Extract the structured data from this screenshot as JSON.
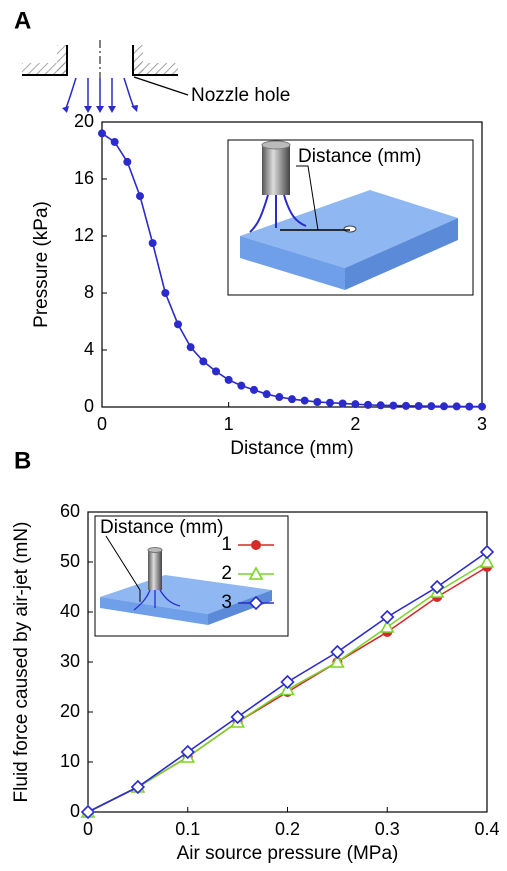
{
  "chart_data": [
    {
      "type": "line",
      "panel_label": "A",
      "annotation": "Nozzle hole",
      "inset_label": "Distance (mm)",
      "xlabel": "Distance (mm)",
      "ylabel": "Pressure (kPa)",
      "x": [
        0,
        0.1,
        0.2,
        0.3,
        0.4,
        0.5,
        0.6,
        0.7,
        0.8,
        0.9,
        1.0,
        1.1,
        1.2,
        1.3,
        1.4,
        1.5,
        1.6,
        1.7,
        1.8,
        1.9,
        2.0,
        2.1,
        2.2,
        2.3,
        2.4,
        2.5,
        2.6,
        2.7,
        2.8,
        2.9,
        3.0
      ],
      "series": [
        {
          "color": "#2b2bcc",
          "marker": "circle",
          "values": [
            19.2,
            18.6,
            17.2,
            14.8,
            11.5,
            8.0,
            5.8,
            4.2,
            3.2,
            2.5,
            1.9,
            1.5,
            1.2,
            0.9,
            0.7,
            0.55,
            0.45,
            0.35,
            0.3,
            0.25,
            0.2,
            0.15,
            0.12,
            0.1,
            0.08,
            0.07,
            0.06,
            0.05,
            0.04,
            0.03,
            0.03
          ]
        }
      ],
      "xlim": [
        0,
        3
      ],
      "xticks": [
        0,
        1,
        2,
        3
      ],
      "ylim": [
        0,
        20
      ],
      "yticks": [
        0,
        4,
        8,
        12,
        16,
        20
      ]
    },
    {
      "type": "line",
      "panel_label": "B",
      "inset_label": "Distance (mm)",
      "xlabel": "Air source pressure (MPa)",
      "ylabel": "Fluid force caused by air-jet (mN)",
      "x": [
        0,
        0.05,
        0.1,
        0.15,
        0.2,
        0.25,
        0.3,
        0.35,
        0.4
      ],
      "series": [
        {
          "name": "1",
          "color": "#d42a2a",
          "marker": "circle",
          "values": [
            0,
            5,
            11,
            18,
            24,
            30,
            36,
            43,
            49
          ]
        },
        {
          "name": "2",
          "color": "#7cd42a",
          "marker": "triangle",
          "values": [
            0,
            5,
            11,
            18,
            24.5,
            30,
            37,
            44,
            50
          ]
        },
        {
          "name": "3",
          "color": "#2b2bcc",
          "marker": "diamond",
          "values": [
            0,
            5,
            12,
            19,
            26,
            32,
            39,
            45,
            52
          ]
        }
      ],
      "xlim": [
        0,
        0.4
      ],
      "xticks": [
        0,
        0.1,
        0.2,
        0.3,
        0.4
      ],
      "ylim": [
        0,
        60
      ],
      "yticks": [
        0,
        10,
        20,
        30,
        40,
        50,
        60
      ]
    }
  ]
}
